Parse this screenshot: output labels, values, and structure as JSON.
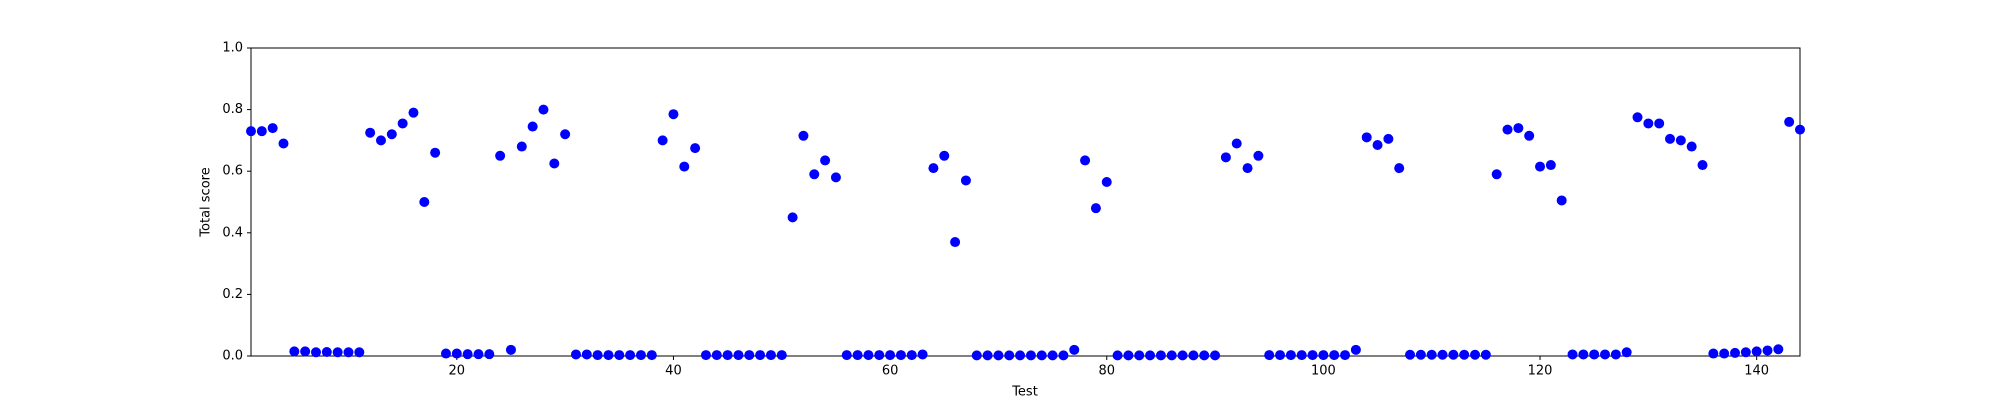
{
  "chart_data": {
    "type": "scatter",
    "x_label": "Test",
    "y_label": "Total score",
    "color": "#0000ff",
    "x": [
      1,
      2,
      3,
      4,
      5,
      6,
      7,
      8,
      9,
      10,
      11,
      12,
      13,
      14,
      15,
      16,
      17,
      18,
      19,
      20,
      21,
      22,
      23,
      24,
      25,
      26,
      27,
      28,
      29,
      30,
      31,
      32,
      33,
      34,
      35,
      36,
      37,
      38,
      39,
      40,
      41,
      42,
      43,
      44,
      45,
      46,
      47,
      48,
      49,
      50,
      51,
      52,
      53,
      54,
      55,
      56,
      57,
      58,
      59,
      60,
      61,
      62,
      63,
      64,
      65,
      66,
      67,
      68,
      69,
      70,
      71,
      72,
      73,
      74,
      75,
      76,
      77,
      78,
      79,
      80,
      81,
      82,
      83,
      84,
      85,
      86,
      87,
      88,
      89,
      90,
      91,
      92,
      93,
      94,
      95,
      96,
      97,
      98,
      99,
      100,
      101,
      102,
      103,
      104,
      105,
      106,
      107,
      108,
      109,
      110,
      111,
      112,
      113,
      114,
      115,
      116,
      117,
      118,
      119,
      120,
      121,
      122,
      123,
      124,
      125,
      126,
      127,
      128,
      129,
      130,
      131,
      132,
      133,
      134,
      135,
      136,
      137,
      138,
      139,
      140,
      141,
      142,
      143,
      144
    ],
    "values": [
      0.73,
      0.73,
      0.74,
      0.69,
      0.015,
      0.015,
      0.012,
      0.013,
      0.012,
      0.012,
      0.012,
      0.725,
      0.7,
      0.72,
      0.755,
      0.79,
      0.5,
      0.66,
      0.008,
      0.008,
      0.006,
      0.006,
      0.006,
      0.65,
      0.02,
      0.68,
      0.745,
      0.8,
      0.625,
      0.72,
      0.005,
      0.005,
      0.003,
      0.003,
      0.003,
      0.003,
      0.003,
      0.003,
      0.7,
      0.785,
      0.615,
      0.675,
      0.003,
      0.003,
      0.003,
      0.003,
      0.003,
      0.003,
      0.003,
      0.003,
      0.45,
      0.715,
      0.59,
      0.635,
      0.58,
      0.003,
      0.003,
      0.003,
      0.003,
      0.003,
      0.003,
      0.003,
      0.005,
      0.61,
      0.65,
      0.37,
      0.57,
      0.002,
      0.002,
      0.002,
      0.002,
      0.002,
      0.002,
      0.002,
      0.002,
      0.002,
      0.02,
      0.635,
      0.48,
      0.565,
      0.002,
      0.002,
      0.002,
      0.002,
      0.002,
      0.002,
      0.002,
      0.002,
      0.002,
      0.002,
      0.645,
      0.69,
      0.61,
      0.65,
      0.003,
      0.003,
      0.003,
      0.003,
      0.003,
      0.003,
      0.003,
      0.003,
      0.02,
      0.71,
      0.685,
      0.705,
      0.61,
      0.004,
      0.004,
      0.004,
      0.004,
      0.004,
      0.004,
      0.004,
      0.004,
      0.59,
      0.735,
      0.74,
      0.715,
      0.615,
      0.62,
      0.505,
      0.005,
      0.005,
      0.005,
      0.005,
      0.005,
      0.012,
      0.775,
      0.755,
      0.755,
      0.705,
      0.7,
      0.68,
      0.62,
      0.008,
      0.008,
      0.01,
      0.012,
      0.015,
      0.018,
      0.022,
      0.76,
      0.735
    ],
    "xlim": [
      1,
      144
    ],
    "ylim": [
      0,
      1
    ],
    "xticks": [
      20,
      40,
      60,
      80,
      100,
      120,
      140
    ],
    "yticks": [
      {
        "value": 0,
        "label": "0.0"
      },
      0.2,
      0.4,
      0.6,
      0.8,
      {
        "value": 1,
        "label": "1.0"
      }
    ]
  }
}
